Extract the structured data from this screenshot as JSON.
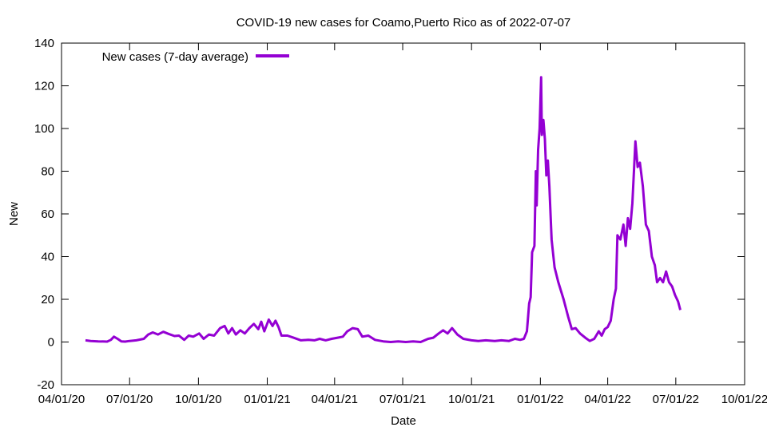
{
  "chart_data": {
    "type": "line",
    "title": "COVID-19 new cases for Coamo,Puerto Rico as of 2022-07-07",
    "xlabel": "Date",
    "ylabel": "New",
    "xlim": [
      "2020-04-01",
      "2022-10-01"
    ],
    "ylim": [
      -20,
      140
    ],
    "x_ticks": [
      "04/01/20",
      "07/01/20",
      "10/01/20",
      "01/01/21",
      "04/01/21",
      "07/01/21",
      "10/01/21",
      "01/01/22",
      "04/01/22",
      "07/01/22",
      "10/01/22"
    ],
    "y_ticks": [
      -20,
      0,
      20,
      40,
      60,
      80,
      100,
      120,
      140
    ],
    "grid": false,
    "legend_position": "top-left",
    "colors": {
      "series": "#9400d3",
      "axis": "#000000",
      "background": "#ffffff"
    },
    "series": [
      {
        "name": "New cases (7-day average)",
        "points": [
          [
            "2020-05-03",
            0.8
          ],
          [
            "2020-05-10",
            0.5
          ],
          [
            "2020-05-20",
            0.3
          ],
          [
            "2020-06-01",
            0.2
          ],
          [
            "2020-06-06",
            1.0
          ],
          [
            "2020-06-10",
            2.5
          ],
          [
            "2020-06-15",
            1.5
          ],
          [
            "2020-06-20",
            0.3
          ],
          [
            "2020-06-25",
            0.2
          ],
          [
            "2020-07-01",
            0.5
          ],
          [
            "2020-07-10",
            0.8
          ],
          [
            "2020-07-20",
            1.5
          ],
          [
            "2020-07-26",
            3.5
          ],
          [
            "2020-08-01",
            4.5
          ],
          [
            "2020-08-08",
            3.5
          ],
          [
            "2020-08-15",
            4.8
          ],
          [
            "2020-08-22",
            3.8
          ],
          [
            "2020-08-30",
            2.8
          ],
          [
            "2020-09-05",
            3.0
          ],
          [
            "2020-09-12",
            1.0
          ],
          [
            "2020-09-18",
            3.0
          ],
          [
            "2020-09-24",
            2.5
          ],
          [
            "2020-10-02",
            4.0
          ],
          [
            "2020-10-08",
            1.5
          ],
          [
            "2020-10-15",
            3.5
          ],
          [
            "2020-10-22",
            3.0
          ],
          [
            "2020-10-30",
            6.5
          ],
          [
            "2020-11-05",
            7.5
          ],
          [
            "2020-11-10",
            4.0
          ],
          [
            "2020-11-15",
            6.5
          ],
          [
            "2020-11-20",
            3.5
          ],
          [
            "2020-11-26",
            5.5
          ],
          [
            "2020-12-02",
            4.0
          ],
          [
            "2020-12-08",
            6.5
          ],
          [
            "2020-12-14",
            8.5
          ],
          [
            "2020-12-20",
            6.0
          ],
          [
            "2020-12-24",
            9.5
          ],
          [
            "2020-12-28",
            5.0
          ],
          [
            "2021-01-03",
            10.5
          ],
          [
            "2021-01-08",
            7.5
          ],
          [
            "2021-01-12",
            10.0
          ],
          [
            "2021-01-16",
            7.0
          ],
          [
            "2021-01-20",
            3.0
          ],
          [
            "2021-01-28",
            3.0
          ],
          [
            "2021-02-05",
            2.0
          ],
          [
            "2021-02-15",
            0.8
          ],
          [
            "2021-02-25",
            1.0
          ],
          [
            "2021-03-05",
            0.8
          ],
          [
            "2021-03-12",
            1.5
          ],
          [
            "2021-03-20",
            0.8
          ],
          [
            "2021-03-28",
            1.5
          ],
          [
            "2021-04-05",
            2.0
          ],
          [
            "2021-04-12",
            2.5
          ],
          [
            "2021-04-18",
            5.0
          ],
          [
            "2021-04-25",
            6.5
          ],
          [
            "2021-05-02",
            6.0
          ],
          [
            "2021-05-08",
            2.5
          ],
          [
            "2021-05-16",
            3.0
          ],
          [
            "2021-05-25",
            1.0
          ],
          [
            "2021-06-05",
            0.3
          ],
          [
            "2021-06-15",
            0.0
          ],
          [
            "2021-06-25",
            0.3
          ],
          [
            "2021-07-05",
            0.0
          ],
          [
            "2021-07-15",
            0.3
          ],
          [
            "2021-07-25",
            0.0
          ],
          [
            "2021-08-04",
            1.5
          ],
          [
            "2021-08-11",
            2.0
          ],
          [
            "2021-08-18",
            4.0
          ],
          [
            "2021-08-24",
            5.5
          ],
          [
            "2021-08-30",
            4.0
          ],
          [
            "2021-09-05",
            6.5
          ],
          [
            "2021-09-12",
            3.5
          ],
          [
            "2021-09-20",
            1.5
          ],
          [
            "2021-10-01",
            0.8
          ],
          [
            "2021-10-10",
            0.5
          ],
          [
            "2021-10-20",
            0.8
          ],
          [
            "2021-11-01",
            0.5
          ],
          [
            "2021-11-10",
            0.8
          ],
          [
            "2021-11-20",
            0.5
          ],
          [
            "2021-11-28",
            1.5
          ],
          [
            "2021-12-05",
            1.0
          ],
          [
            "2021-12-10",
            1.5
          ],
          [
            "2021-12-14",
            5.0
          ],
          [
            "2021-12-17",
            18.0
          ],
          [
            "2021-12-19",
            21.0
          ],
          [
            "2021-12-21",
            42.0
          ],
          [
            "2021-12-24",
            45.0
          ],
          [
            "2021-12-26",
            80.0
          ],
          [
            "2021-12-27",
            64.0
          ],
          [
            "2021-12-29",
            90.0
          ],
          [
            "2021-12-31",
            100.0
          ],
          [
            "2022-01-02",
            124.0
          ],
          [
            "2022-01-03",
            97.0
          ],
          [
            "2022-01-05",
            104.0
          ],
          [
            "2022-01-07",
            95.0
          ],
          [
            "2022-01-09",
            78.0
          ],
          [
            "2022-01-11",
            85.0
          ],
          [
            "2022-01-13",
            73.0
          ],
          [
            "2022-01-16",
            48.0
          ],
          [
            "2022-01-20",
            35.0
          ],
          [
            "2022-01-25",
            28.0
          ],
          [
            "2022-02-01",
            20.0
          ],
          [
            "2022-02-07",
            12.0
          ],
          [
            "2022-02-12",
            6.0
          ],
          [
            "2022-02-17",
            6.5
          ],
          [
            "2022-02-23",
            4.0
          ],
          [
            "2022-03-02",
            2.0
          ],
          [
            "2022-03-08",
            0.5
          ],
          [
            "2022-03-14",
            1.5
          ],
          [
            "2022-03-20",
            5.0
          ],
          [
            "2022-03-24",
            3.0
          ],
          [
            "2022-03-28",
            6.0
          ],
          [
            "2022-04-01",
            7.0
          ],
          [
            "2022-04-05",
            10.0
          ],
          [
            "2022-04-09",
            20.0
          ],
          [
            "2022-04-12",
            25.0
          ],
          [
            "2022-04-14",
            50.0
          ],
          [
            "2022-04-18",
            48.0
          ],
          [
            "2022-04-22",
            55.0
          ],
          [
            "2022-04-25",
            45.0
          ],
          [
            "2022-04-28",
            58.0
          ],
          [
            "2022-05-01",
            53.0
          ],
          [
            "2022-05-04",
            65.0
          ],
          [
            "2022-05-08",
            94.0
          ],
          [
            "2022-05-11",
            82.0
          ],
          [
            "2022-05-14",
            84.0
          ],
          [
            "2022-05-18",
            73.0
          ],
          [
            "2022-05-22",
            55.0
          ],
          [
            "2022-05-26",
            52.0
          ],
          [
            "2022-05-30",
            40.0
          ],
          [
            "2022-06-03",
            36.0
          ],
          [
            "2022-06-06",
            28.0
          ],
          [
            "2022-06-10",
            30.0
          ],
          [
            "2022-06-14",
            28.0
          ],
          [
            "2022-06-18",
            33.0
          ],
          [
            "2022-06-22",
            28.0
          ],
          [
            "2022-06-26",
            26.0
          ],
          [
            "2022-06-30",
            22.0
          ],
          [
            "2022-07-04",
            19.0
          ],
          [
            "2022-07-07",
            15.0
          ]
        ]
      }
    ]
  }
}
